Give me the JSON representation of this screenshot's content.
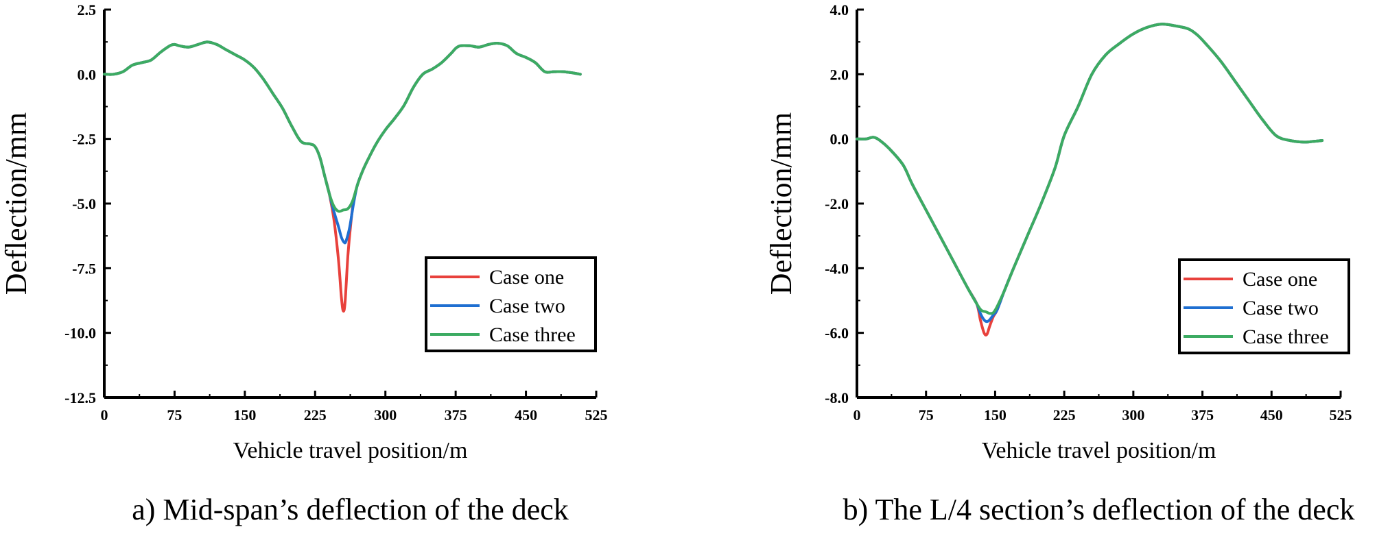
{
  "chart_data": [
    {
      "type": "line",
      "caption": "a) Mid-span’s deflection of the deck",
      "xlabel": "Vehicle travel position/m",
      "ylabel": "Deflection/mm",
      "xlim": [
        0,
        525
      ],
      "ylim": [
        -12.5,
        2.5
      ],
      "xticks": [
        0,
        75,
        150,
        225,
        300,
        375,
        450,
        525
      ],
      "yticks": [
        2.5,
        0.0,
        -2.5,
        -5.0,
        -7.5,
        -10.0,
        -12.5
      ],
      "x_tick_labels": [
        "0",
        "75",
        "150",
        "225",
        "300",
        "375",
        "450",
        "525"
      ],
      "y_tick_labels": [
        "2.5",
        "0.0",
        "-2.5",
        "-5.0",
        "-7.5",
        "-10.0",
        "-12.5"
      ],
      "legend_position": "lower-right",
      "base_curve": {
        "x": [
          0,
          10,
          20,
          30,
          40,
          50,
          60,
          70,
          75,
          80,
          90,
          100,
          110,
          120,
          130,
          140,
          150,
          160,
          170,
          180,
          190,
          200,
          210,
          220,
          225,
          230,
          235,
          240,
          245,
          250,
          255,
          260,
          265,
          270,
          275,
          280,
          290,
          300,
          310,
          320,
          330,
          340,
          350,
          360,
          370,
          375,
          380,
          390,
          400,
          410,
          420,
          430,
          440,
          450,
          460,
          470,
          480,
          490,
          500,
          508
        ],
        "y": [
          0.0,
          0.0,
          0.1,
          0.35,
          0.45,
          0.55,
          0.85,
          1.1,
          1.15,
          1.1,
          1.05,
          1.15,
          1.25,
          1.15,
          0.95,
          0.75,
          0.55,
          0.25,
          -0.2,
          -0.75,
          -1.3,
          -2.0,
          -2.6,
          -2.7,
          -2.8,
          -3.2,
          -3.9,
          -4.6,
          -5.1,
          -5.3,
          -5.25,
          -5.2,
          -4.9,
          -4.3,
          -3.8,
          -3.4,
          -2.7,
          -2.15,
          -1.7,
          -1.2,
          -0.5,
          0.0,
          0.2,
          0.45,
          0.8,
          1.0,
          1.1,
          1.1,
          1.05,
          1.15,
          1.2,
          1.1,
          0.8,
          0.65,
          0.45,
          0.1,
          0.1,
          0.1,
          0.05,
          0.0
        ]
      },
      "series": [
        {
          "name": "Case one",
          "color": "#e8413c",
          "x": [
            240,
            245,
            250,
            253,
            255,
            257,
            260,
            263,
            266,
            270,
            275
          ],
          "y": [
            -4.6,
            -5.6,
            -7.2,
            -8.6,
            -9.15,
            -8.8,
            -7.0,
            -5.8,
            -4.9,
            -4.3,
            -3.8
          ]
        },
        {
          "name": "Case two",
          "color": "#1f6fd1",
          "x": [
            240,
            245,
            250,
            253,
            256,
            258,
            262,
            266,
            270,
            275
          ],
          "y": [
            -4.6,
            -5.3,
            -5.9,
            -6.3,
            -6.5,
            -6.45,
            -5.9,
            -5.0,
            -4.3,
            -3.8
          ]
        },
        {
          "name": "Case three",
          "color": "#3cab62"
        }
      ]
    },
    {
      "type": "line",
      "caption": "b) The L/4 section’s deflection of the deck",
      "xlabel": "Vehicle travel position/m",
      "ylabel": "Deflection/mm",
      "xlim": [
        0,
        525
      ],
      "ylim": [
        -8.0,
        4.0
      ],
      "xticks": [
        0,
        75,
        150,
        225,
        300,
        375,
        450,
        525
      ],
      "yticks": [
        4.0,
        2.0,
        0.0,
        -2.0,
        -4.0,
        -6.0,
        -8.0
      ],
      "x_tick_labels": [
        "0",
        "75",
        "150",
        "225",
        "300",
        "375",
        "450",
        "525"
      ],
      "y_tick_labels": [
        "4.0",
        "2.0",
        "0.0",
        "-2.0",
        "-4.0",
        "-6.0",
        "-8.0"
      ],
      "legend_position": "lower-right",
      "base_curve": {
        "x": [
          0,
          10,
          18,
          25,
          35,
          50,
          60,
          75,
          90,
          105,
          120,
          130,
          135,
          140,
          145,
          150,
          160,
          170,
          185,
          200,
          215,
          225,
          240,
          255,
          270,
          285,
          300,
          315,
          330,
          345,
          360,
          370,
          380,
          395,
          410,
          425,
          440,
          455,
          470,
          485,
          495,
          505
        ],
        "y": [
          0.0,
          0.0,
          0.05,
          -0.05,
          -0.3,
          -0.8,
          -1.4,
          -2.2,
          -3.0,
          -3.8,
          -4.6,
          -5.1,
          -5.3,
          -5.35,
          -5.4,
          -5.3,
          -4.7,
          -4.0,
          -3.0,
          -2.0,
          -0.9,
          0.1,
          1.0,
          2.0,
          2.6,
          2.95,
          3.25,
          3.45,
          3.55,
          3.5,
          3.4,
          3.2,
          2.9,
          2.4,
          1.8,
          1.2,
          0.6,
          0.1,
          -0.05,
          -0.1,
          -0.08,
          -0.05
        ]
      },
      "series": [
        {
          "name": "Case one",
          "color": "#e8413c",
          "x": [
            130,
            134,
            138,
            141,
            144,
            148,
            152
          ],
          "y": [
            -5.1,
            -5.6,
            -6.0,
            -6.05,
            -5.8,
            -5.5,
            -5.3
          ]
        },
        {
          "name": "Case two",
          "color": "#1f6fd1",
          "x": [
            130,
            134,
            138,
            141,
            144,
            148,
            152
          ],
          "y": [
            -5.1,
            -5.4,
            -5.6,
            -5.65,
            -5.6,
            -5.45,
            -5.3
          ]
        },
        {
          "name": "Case three",
          "color": "#3cab62"
        }
      ]
    }
  ]
}
